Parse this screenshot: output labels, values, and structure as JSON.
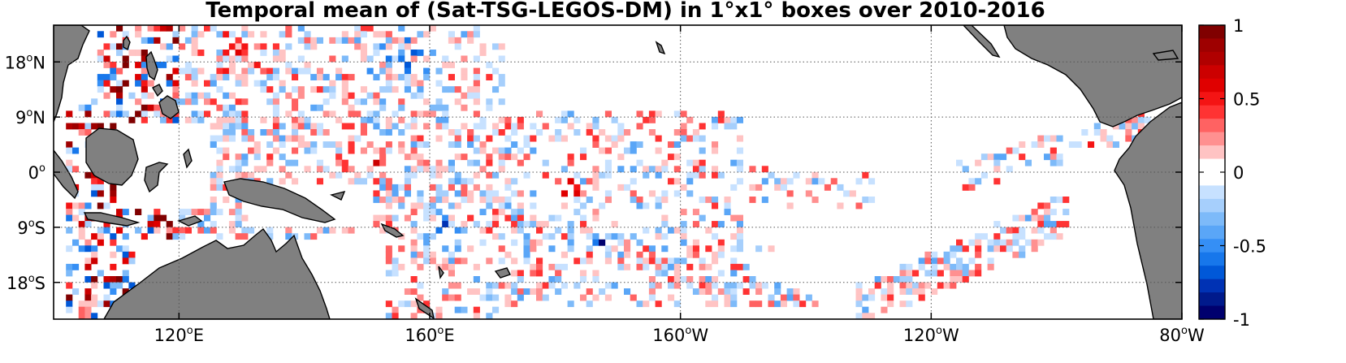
{
  "title": "Temporal mean of (Sat-TSG-LEGOS-DM) in 1°x1° boxes over 2010-2016",
  "chart_data": {
    "type": "heatmap",
    "projection": "equirectangular",
    "lon_range": [
      100,
      280
    ],
    "lat_range": [
      -24,
      24
    ],
    "grid": true,
    "colorbar": {
      "range": [
        -1,
        1
      ],
      "ticks": [
        "1",
        "0.5",
        "0",
        "-0.5",
        "-1"
      ],
      "levels_top_to_bottom": [
        "#800000",
        "#9e0000",
        "#b00000",
        "#cc0000",
        "#e00000",
        "#f41414",
        "#ff3333",
        "#ff6262",
        "#ff9090",
        "#ffc3c3",
        "#ffffff",
        "#ffffff",
        "#c7e1ff",
        "#a6cffc",
        "#7dbaf9",
        "#5aa6f7",
        "#358ff5",
        "#1777eb",
        "#0058d8",
        "#0032b4",
        "#001a8c",
        "#00006e"
      ]
    },
    "x_ticks": [
      {
        "deg": "120",
        "hemi": "E",
        "lon": 120
      },
      {
        "deg": "160",
        "hemi": "E",
        "lon": 160
      },
      {
        "deg": "160",
        "hemi": "W",
        "lon": 200
      },
      {
        "deg": "120",
        "hemi": "W",
        "lon": 240
      },
      {
        "deg": "80",
        "hemi": "W",
        "lon": 280
      }
    ],
    "y_ticks": [
      {
        "deg": "18",
        "hemi": "N",
        "lat": 18
      },
      {
        "deg": "9",
        "hemi": "N",
        "lat": 9
      },
      {
        "deg": "0",
        "hemi": "",
        "lat": 0
      },
      {
        "deg": "9",
        "hemi": "S",
        "lat": -9
      },
      {
        "deg": "18",
        "hemi": "S",
        "lat": -18
      }
    ],
    "land_color": "#808080",
    "pattern_note": "Dense 1°x1° box coverage across western Pacific ship tracks; red maximum near 179°E-176°W, 2-5°S; blue minimum near 171°W, 11-14°S; red cluster near 97-93°W, 2-3°N"
  }
}
